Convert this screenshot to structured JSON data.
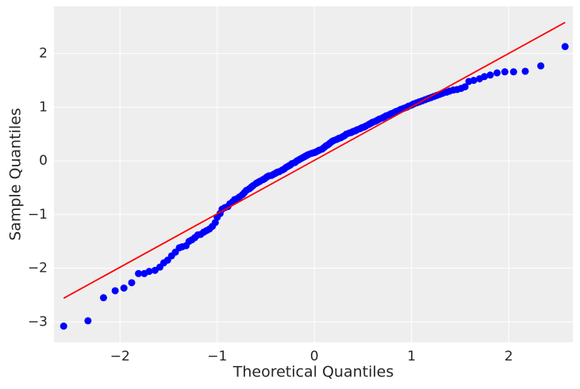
{
  "chart_data": {
    "type": "scatter",
    "xlabel": "Theoretical Quantiles",
    "ylabel": "Sample Quantiles",
    "xlim": [
      -2.68,
      2.66
    ],
    "ylim": [
      -3.38,
      2.88
    ],
    "xticks": [
      {
        "value": -2,
        "label": "−2"
      },
      {
        "value": -1,
        "label": "−1"
      },
      0,
      1,
      2
    ],
    "yticks": [
      {
        "value": -3,
        "label": "−3"
      },
      {
        "value": -2,
        "label": "−2"
      },
      {
        "value": -1,
        "label": "−1"
      },
      0,
      1,
      2
    ],
    "grid": true,
    "color": "#0000ff",
    "x": [
      -2.58,
      -2.33,
      -2.17,
      -2.05,
      -1.96,
      -1.88,
      -1.81,
      -1.75,
      -1.7,
      -1.64,
      -1.59,
      -1.55,
      -1.51,
      -1.47,
      -1.43,
      -1.39,
      -1.36,
      -1.32,
      -1.29,
      -1.26,
      -1.23,
      -1.2,
      -1.17,
      -1.14,
      -1.11,
      -1.08,
      -1.05,
      -1.02,
      -1.0,
      -0.97,
      -0.95,
      -0.92,
      -0.89,
      -0.87,
      -0.84,
      -0.82,
      -0.79,
      -0.77,
      -0.74,
      -0.72,
      -0.7,
      -0.67,
      -0.65,
      -0.63,
      -0.6,
      -0.58,
      -0.56,
      -0.53,
      -0.51,
      -0.49,
      -0.47,
      -0.44,
      -0.42,
      -0.4,
      -0.38,
      -0.36,
      -0.33,
      -0.31,
      -0.29,
      -0.27,
      -0.25,
      -0.23,
      -0.2,
      -0.18,
      -0.16,
      -0.14,
      -0.12,
      -0.1,
      -0.08,
      -0.06,
      -0.03,
      -0.01,
      0.01,
      0.03,
      0.05,
      0.08,
      0.1,
      0.12,
      0.14,
      0.16,
      0.18,
      0.2,
      0.23,
      0.25,
      0.27,
      0.29,
      0.31,
      0.33,
      0.36,
      0.38,
      0.4,
      0.42,
      0.44,
      0.47,
      0.49,
      0.51,
      0.53,
      0.56,
      0.58,
      0.6,
      0.63,
      0.65,
      0.67,
      0.7,
      0.72,
      0.74,
      0.77,
      0.79,
      0.82,
      0.84,
      0.87,
      0.89,
      0.92,
      0.95,
      0.97,
      1.0,
      1.02,
      1.05,
      1.08,
      1.11,
      1.14,
      1.17,
      1.2,
      1.23,
      1.26,
      1.29,
      1.32,
      1.36,
      1.39,
      1.43,
      1.47,
      1.51,
      1.55,
      1.59,
      1.64,
      1.7,
      1.75,
      1.81,
      1.88,
      1.96,
      2.05,
      2.17,
      2.33,
      2.58
    ],
    "values": [
      -3.08,
      -2.98,
      -2.55,
      -2.42,
      -2.37,
      -2.27,
      -2.1,
      -2.1,
      -2.06,
      -2.04,
      -1.98,
      -1.9,
      -1.85,
      -1.77,
      -1.7,
      -1.62,
      -1.6,
      -1.58,
      -1.5,
      -1.47,
      -1.43,
      -1.38,
      -1.37,
      -1.33,
      -1.3,
      -1.27,
      -1.22,
      -1.15,
      -1.05,
      -0.98,
      -0.9,
      -0.87,
      -0.85,
      -0.8,
      -0.76,
      -0.72,
      -0.7,
      -0.67,
      -0.63,
      -0.59,
      -0.55,
      -0.52,
      -0.49,
      -0.46,
      -0.42,
      -0.4,
      -0.38,
      -0.35,
      -0.33,
      -0.3,
      -0.28,
      -0.27,
      -0.25,
      -0.23,
      -0.21,
      -0.2,
      -0.17,
      -0.15,
      -0.12,
      -0.1,
      -0.08,
      -0.05,
      -0.03,
      0.0,
      0.02,
      0.04,
      0.06,
      0.08,
      0.1,
      0.12,
      0.14,
      0.15,
      0.16,
      0.18,
      0.2,
      0.22,
      0.25,
      0.28,
      0.3,
      0.33,
      0.36,
      0.38,
      0.4,
      0.42,
      0.43,
      0.45,
      0.47,
      0.5,
      0.52,
      0.53,
      0.55,
      0.56,
      0.58,
      0.6,
      0.62,
      0.63,
      0.65,
      0.68,
      0.7,
      0.72,
      0.74,
      0.76,
      0.78,
      0.8,
      0.82,
      0.84,
      0.86,
      0.88,
      0.9,
      0.92,
      0.94,
      0.96,
      0.98,
      1.0,
      1.02,
      1.04,
      1.06,
      1.08,
      1.1,
      1.12,
      1.14,
      1.16,
      1.18,
      1.2,
      1.22,
      1.24,
      1.26,
      1.28,
      1.3,
      1.32,
      1.33,
      1.35,
      1.38,
      1.48,
      1.5,
      1.53,
      1.57,
      1.6,
      1.64,
      1.66,
      1.66,
      1.67,
      1.77,
      2.13
    ],
    "line": {
      "x": [
        -2.58,
        2.58
      ],
      "values": [
        -2.56,
        2.58
      ],
      "color": "#ff0000"
    }
  }
}
